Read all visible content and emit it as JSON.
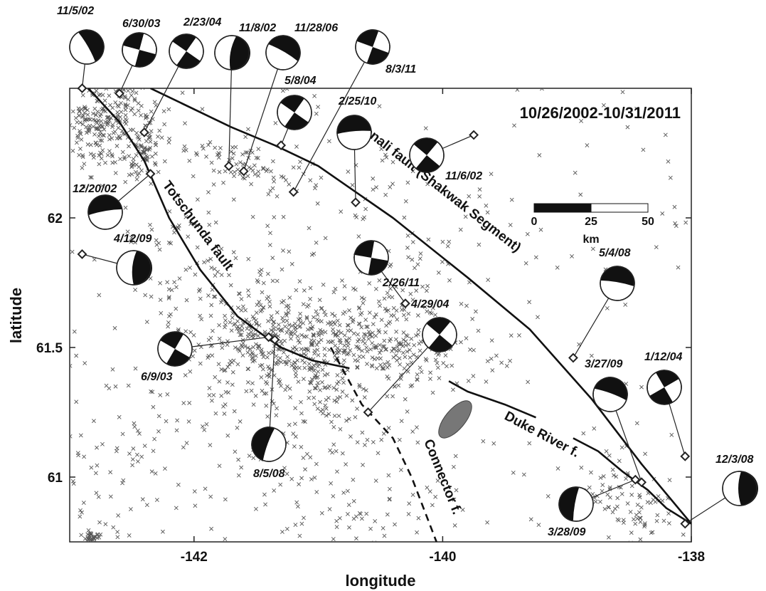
{
  "map": {
    "date_range": "10/26/2002-10/31/2011",
    "x_axis_label": "longitude",
    "y_axis_label": "latitude",
    "lon_range": [
      -143.0,
      -138.0
    ],
    "lat_range": [
      60.75,
      62.5
    ],
    "x_ticks": [
      {
        "value": -142,
        "label": "-142"
      },
      {
        "value": -140,
        "label": "-140"
      },
      {
        "value": -138,
        "label": "-138"
      }
    ],
    "y_ticks": [
      {
        "value": 62,
        "label": "62"
      },
      {
        "value": 61.5,
        "label": "61.5"
      },
      {
        "value": 61,
        "label": "61"
      }
    ]
  },
  "scale_bar": {
    "labels": [
      "0",
      "25",
      "50"
    ],
    "unit": "km"
  },
  "faults": [
    {
      "name": "Denali fault (Shakwak Segment)",
      "style": "solid",
      "points": [
        [
          -142.35,
          62.5
        ],
        [
          -141.7,
          62.35
        ],
        [
          -141.35,
          62.28
        ],
        [
          -141.0,
          62.2
        ],
        [
          -140.4,
          62.0
        ],
        [
          -139.8,
          61.77
        ],
        [
          -139.3,
          61.57
        ],
        [
          -138.8,
          61.3
        ],
        [
          -138.4,
          61.05
        ],
        [
          -138.0,
          60.82
        ]
      ]
    },
    {
      "name": "Totschunda fault",
      "style": "solid",
      "points": [
        [
          -142.85,
          62.5
        ],
        [
          -142.6,
          62.37
        ],
        [
          -142.4,
          62.22
        ],
        [
          -142.2,
          62.0
        ],
        [
          -141.95,
          61.8
        ],
        [
          -141.65,
          61.62
        ],
        [
          -141.45,
          61.55
        ],
        [
          -141.3,
          61.5
        ],
        [
          -141.05,
          61.45
        ],
        [
          -140.75,
          61.42
        ]
      ]
    },
    {
      "name": "Duke River f.",
      "style": "solid",
      "points": [
        [
          -139.95,
          61.37
        ],
        [
          -139.8,
          61.33
        ],
        [
          -139.5,
          61.28
        ],
        [
          -139.25,
          61.23
        ]
      ]
    },
    {
      "name": "Duke River f. (east)",
      "style": "solid",
      "points": [
        [
          -138.95,
          61.15
        ],
        [
          -138.75,
          61.1
        ],
        [
          -138.55,
          61.02
        ],
        [
          -138.35,
          60.95
        ],
        [
          -138.2,
          60.88
        ],
        [
          -138.0,
          60.82
        ]
      ]
    },
    {
      "name": "Connector f.",
      "style": "dashed",
      "points": [
        [
          -140.9,
          61.5
        ],
        [
          -140.65,
          61.28
        ],
        [
          -140.4,
          61.15
        ],
        [
          -140.25,
          61.0
        ],
        [
          -140.05,
          60.75
        ]
      ]
    }
  ],
  "fault_labels": [
    {
      "text": "Denali fault (Shakwak Segment)"
    },
    {
      "text": "Totschunda fault"
    },
    {
      "text": "Duke River f."
    },
    {
      "text": "Connector f."
    }
  ],
  "mechanisms": [
    {
      "date": "11/5/02",
      "lon": -142.9,
      "lat": 62.5
    },
    {
      "date": "6/30/03",
      "lon": -142.6,
      "lat": 62.48
    },
    {
      "date": "2/23/04",
      "lon": -142.4,
      "lat": 62.33
    },
    {
      "date": "11/8/02",
      "lon": -141.72,
      "lat": 62.2
    },
    {
      "date": "11/28/06",
      "lon": -141.6,
      "lat": 62.18
    },
    {
      "date": "8/3/11",
      "lon": -141.2,
      "lat": 62.1
    },
    {
      "date": "5/8/04",
      "lon": -141.3,
      "lat": 62.28
    },
    {
      "date": "2/25/10",
      "lon": -140.7,
      "lat": 62.06
    },
    {
      "date": "11/6/02",
      "lon": -139.75,
      "lat": 62.32
    },
    {
      "date": "12/20/02",
      "lon": -142.35,
      "lat": 62.17
    },
    {
      "date": "4/12/09",
      "lon": -142.9,
      "lat": 61.86
    },
    {
      "date": "2/26/11",
      "lon": -140.3,
      "lat": 61.67
    },
    {
      "date": "6/9/03",
      "lon": -141.4,
      "lat": 61.54
    },
    {
      "date": "4/29/04",
      "lon": -140.6,
      "lat": 61.25
    },
    {
      "date": "8/5/08",
      "lon": -141.35,
      "lat": 61.53
    },
    {
      "date": "5/4/08",
      "lon": -138.95,
      "lat": 61.46
    },
    {
      "date": "3/27/09",
      "lon": -138.4,
      "lat": 60.98
    },
    {
      "date": "1/12/04",
      "lon": -138.05,
      "lat": 61.08
    },
    {
      "date": "3/28/09",
      "lon": -138.45,
      "lat": 60.99
    },
    {
      "date": "12/3/08",
      "lon": -138.05,
      "lat": 60.82
    }
  ],
  "colors": {
    "event_marker": "#555555",
    "fault_line": "#111111",
    "ellipse_fill": "#777777"
  }
}
